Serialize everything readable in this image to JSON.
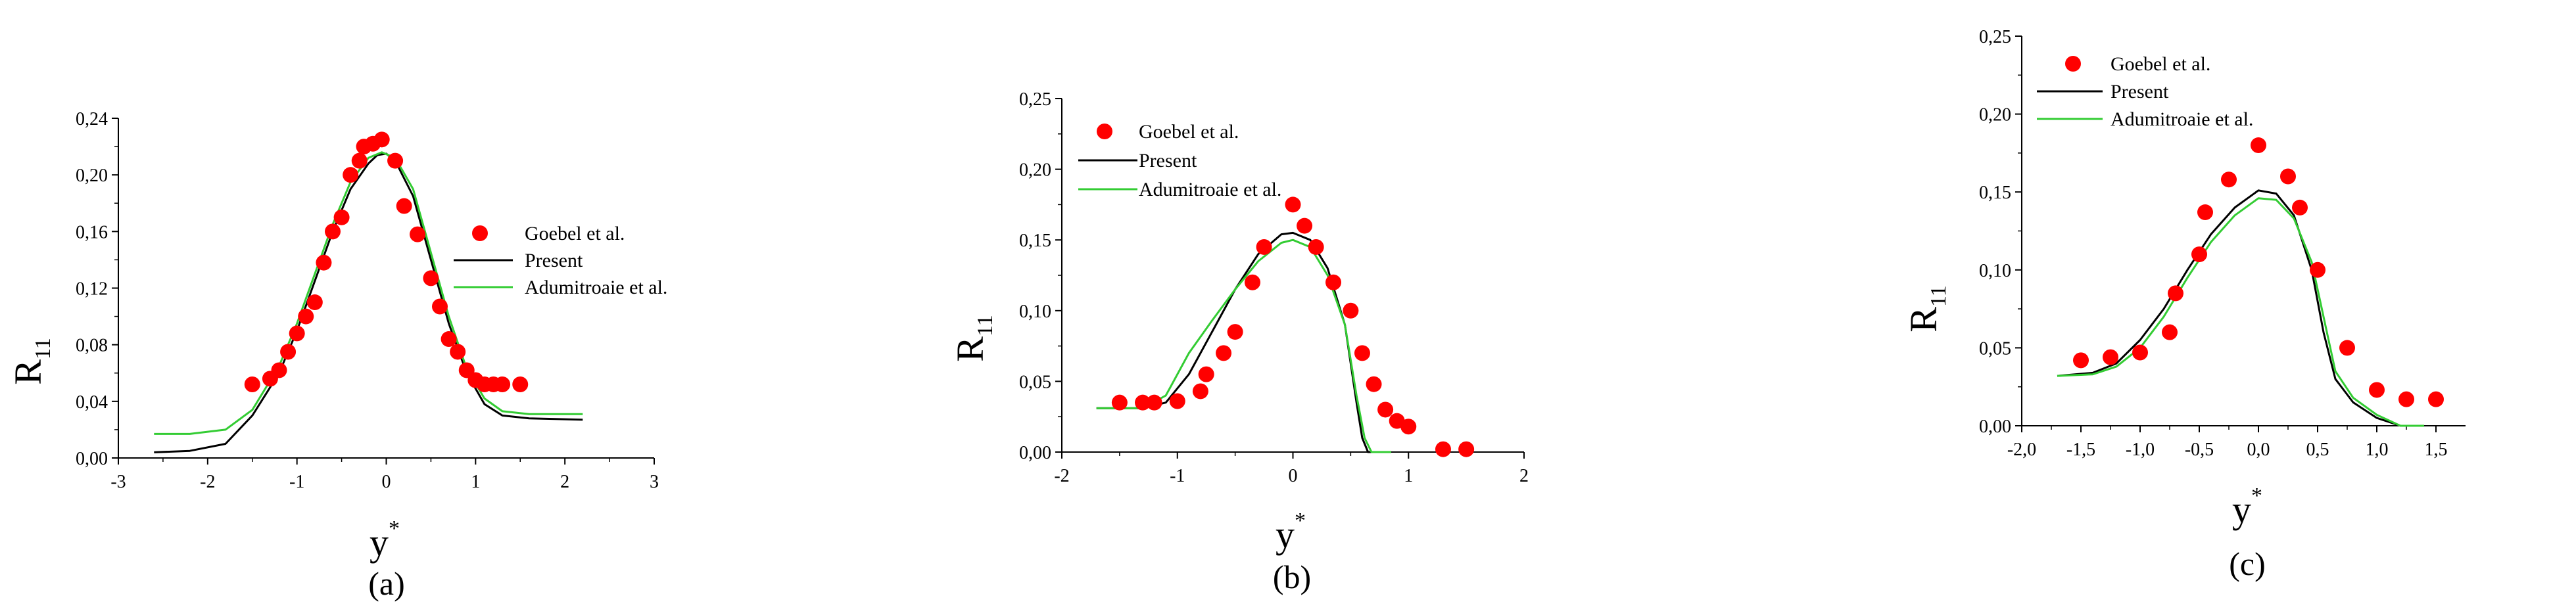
{
  "chart_data": [
    {
      "type": "line",
      "panel_label": "(a)",
      "xlabel": "y",
      "xlabel_superscript": "*",
      "ylabel": "R",
      "ylabel_subscript": "11",
      "xlim": [
        -3,
        3
      ],
      "ylim": [
        0,
        0.24
      ],
      "xticks": [
        -3,
        -2,
        -1,
        0,
        1,
        2,
        3
      ],
      "xtick_labels": [
        "-3",
        "-2",
        "-1",
        "0",
        "1",
        "2",
        "3"
      ],
      "yticks": [
        0,
        0.04,
        0.08,
        0.12,
        0.16,
        0.2,
        0.24
      ],
      "ytick_labels": [
        "0,00",
        "0,04",
        "0,08",
        "0,12",
        "0,16",
        "0,20",
        "0,24"
      ],
      "legend_position": "center-right",
      "series": [
        {
          "name": "Goebel et al.",
          "kind": "scatter",
          "color": "#ff0000",
          "points": [
            [
              -1.5,
              0.052
            ],
            [
              -1.3,
              0.056
            ],
            [
              -1.2,
              0.062
            ],
            [
              -1.1,
              0.075
            ],
            [
              -1.0,
              0.088
            ],
            [
              -0.9,
              0.1
            ],
            [
              -0.8,
              0.11
            ],
            [
              -0.7,
              0.138
            ],
            [
              -0.6,
              0.16
            ],
            [
              -0.5,
              0.17
            ],
            [
              -0.4,
              0.2
            ],
            [
              -0.3,
              0.21
            ],
            [
              -0.25,
              0.22
            ],
            [
              -0.15,
              0.222
            ],
            [
              -0.05,
              0.225
            ],
            [
              0.1,
              0.21
            ],
            [
              0.2,
              0.178
            ],
            [
              0.35,
              0.158
            ],
            [
              0.5,
              0.127
            ],
            [
              0.6,
              0.107
            ],
            [
              0.7,
              0.084
            ],
            [
              0.8,
              0.075
            ],
            [
              0.9,
              0.062
            ],
            [
              1.0,
              0.055
            ],
            [
              1.1,
              0.052
            ],
            [
              1.2,
              0.052
            ],
            [
              1.3,
              0.052
            ],
            [
              1.5,
              0.052
            ]
          ]
        },
        {
          "name": "Present",
          "kind": "line",
          "color": "#000000",
          "points": [
            [
              -2.6,
              0.004
            ],
            [
              -2.2,
              0.005
            ],
            [
              -1.8,
              0.01
            ],
            [
              -1.5,
              0.03
            ],
            [
              -1.2,
              0.06
            ],
            [
              -1.0,
              0.09
            ],
            [
              -0.8,
              0.125
            ],
            [
              -0.6,
              0.16
            ],
            [
              -0.4,
              0.19
            ],
            [
              -0.2,
              0.208
            ],
            [
              -0.1,
              0.214
            ],
            [
              0.0,
              0.215
            ],
            [
              0.1,
              0.21
            ],
            [
              0.3,
              0.185
            ],
            [
              0.5,
              0.14
            ],
            [
              0.7,
              0.095
            ],
            [
              0.9,
              0.06
            ],
            [
              1.1,
              0.038
            ],
            [
              1.3,
              0.03
            ],
            [
              1.6,
              0.028
            ],
            [
              2.2,
              0.027
            ]
          ]
        },
        {
          "name": "Adumitroaie et al.",
          "kind": "line",
          "color": "#33cc33",
          "points": [
            [
              -2.6,
              0.017
            ],
            [
              -2.2,
              0.017
            ],
            [
              -1.8,
              0.02
            ],
            [
              -1.5,
              0.034
            ],
            [
              -1.2,
              0.065
            ],
            [
              -1.0,
              0.095
            ],
            [
              -0.8,
              0.13
            ],
            [
              -0.6,
              0.165
            ],
            [
              -0.4,
              0.195
            ],
            [
              -0.2,
              0.212
            ],
            [
              -0.05,
              0.216
            ],
            [
              0.1,
              0.212
            ],
            [
              0.3,
              0.19
            ],
            [
              0.5,
              0.145
            ],
            [
              0.7,
              0.1
            ],
            [
              0.9,
              0.063
            ],
            [
              1.1,
              0.042
            ],
            [
              1.3,
              0.033
            ],
            [
              1.6,
              0.031
            ],
            [
              2.2,
              0.031
            ]
          ]
        }
      ]
    },
    {
      "type": "line",
      "panel_label": "(b)",
      "xlabel": "y",
      "xlabel_superscript": "*",
      "ylabel": "R",
      "ylabel_subscript": "11",
      "xlim": [
        -2,
        2
      ],
      "ylim": [
        0,
        0.25
      ],
      "xticks": [
        -2,
        -1,
        0,
        1,
        2
      ],
      "xtick_labels": [
        "-2",
        "-1",
        "0",
        "1",
        "2"
      ],
      "yticks": [
        0,
        0.05,
        0.1,
        0.15,
        0.2,
        0.25
      ],
      "ytick_labels": [
        "0,00",
        "0,05",
        "0,10",
        "0,15",
        "0,20",
        "0,25"
      ],
      "legend_position": "top-left",
      "series": [
        {
          "name": "Goebel et al.",
          "kind": "scatter",
          "color": "#ff0000",
          "points": [
            [
              -1.5,
              0.035
            ],
            [
              -1.3,
              0.035
            ],
            [
              -1.2,
              0.035
            ],
            [
              -1.0,
              0.036
            ],
            [
              -0.8,
              0.043
            ],
            [
              -0.75,
              0.055
            ],
            [
              -0.6,
              0.07
            ],
            [
              -0.5,
              0.085
            ],
            [
              -0.35,
              0.12
            ],
            [
              -0.25,
              0.145
            ],
            [
              0.0,
              0.175
            ],
            [
              0.1,
              0.16
            ],
            [
              0.2,
              0.145
            ],
            [
              0.35,
              0.12
            ],
            [
              0.5,
              0.1
            ],
            [
              0.6,
              0.07
            ],
            [
              0.7,
              0.048
            ],
            [
              0.8,
              0.03
            ],
            [
              0.9,
              0.022
            ],
            [
              1.0,
              0.018
            ],
            [
              1.3,
              0.002
            ],
            [
              1.5,
              0.002
            ]
          ]
        },
        {
          "name": "Present",
          "kind": "line",
          "color": "#000000",
          "points": [
            [
              -1.7,
              0.031
            ],
            [
              -1.3,
              0.031
            ],
            [
              -1.1,
              0.035
            ],
            [
              -0.9,
              0.055
            ],
            [
              -0.7,
              0.085
            ],
            [
              -0.5,
              0.115
            ],
            [
              -0.3,
              0.14
            ],
            [
              -0.1,
              0.154
            ],
            [
              0.0,
              0.155
            ],
            [
              0.15,
              0.15
            ],
            [
              0.3,
              0.13
            ],
            [
              0.45,
              0.09
            ],
            [
              0.55,
              0.035
            ],
            [
              0.6,
              0.01
            ],
            [
              0.65,
              0.0
            ],
            [
              0.8,
              0.0
            ]
          ]
        },
        {
          "name": "Adumitroaie et al.",
          "kind": "line",
          "color": "#33cc33",
          "points": [
            [
              -1.7,
              0.031
            ],
            [
              -1.3,
              0.031
            ],
            [
              -1.1,
              0.04
            ],
            [
              -0.9,
              0.07
            ],
            [
              -0.7,
              0.093
            ],
            [
              -0.5,
              0.115
            ],
            [
              -0.3,
              0.135
            ],
            [
              -0.1,
              0.148
            ],
            [
              0.0,
              0.15
            ],
            [
              0.15,
              0.145
            ],
            [
              0.3,
              0.125
            ],
            [
              0.45,
              0.09
            ],
            [
              0.55,
              0.04
            ],
            [
              0.62,
              0.01
            ],
            [
              0.68,
              0.0
            ],
            [
              0.85,
              0.0
            ]
          ]
        }
      ]
    },
    {
      "type": "line",
      "panel_label": "(c)",
      "xlabel": "y",
      "xlabel_superscript": "*",
      "ylabel": "R",
      "ylabel_subscript": "11",
      "xlim": [
        -2.0,
        1.75
      ],
      "ylim": [
        0,
        0.25
      ],
      "xticks": [
        -2.0,
        -1.5,
        -1.0,
        -0.5,
        0.0,
        0.5,
        1.0,
        1.5
      ],
      "xtick_labels": [
        "-2,0",
        "-1,5",
        "-1,0",
        "-0,5",
        "0,0",
        "0,5",
        "1,0",
        "1,5"
      ],
      "yticks": [
        0,
        0.05,
        0.1,
        0.15,
        0.2,
        0.25
      ],
      "ytick_labels": [
        "0,00",
        "0,05",
        "0,10",
        "0,15",
        "0,20",
        "0,25"
      ],
      "legend_position": "top-left",
      "series": [
        {
          "name": "Goebel et al.",
          "kind": "scatter",
          "color": "#ff0000",
          "points": [
            [
              -1.5,
              0.042
            ],
            [
              -1.25,
              0.044
            ],
            [
              -1.0,
              0.047
            ],
            [
              -0.75,
              0.06
            ],
            [
              -0.7,
              0.085
            ],
            [
              -0.5,
              0.11
            ],
            [
              -0.45,
              0.137
            ],
            [
              -0.25,
              0.158
            ],
            [
              0.0,
              0.18
            ],
            [
              0.25,
              0.16
            ],
            [
              0.35,
              0.14
            ],
            [
              0.5,
              0.1
            ],
            [
              0.75,
              0.05
            ],
            [
              1.0,
              0.023
            ],
            [
              1.25,
              0.017
            ],
            [
              1.5,
              0.017
            ]
          ]
        },
        {
          "name": "Present",
          "kind": "line",
          "color": "#000000",
          "points": [
            [
              -1.7,
              0.032
            ],
            [
              -1.4,
              0.034
            ],
            [
              -1.2,
              0.04
            ],
            [
              -1.0,
              0.055
            ],
            [
              -0.8,
              0.075
            ],
            [
              -0.6,
              0.1
            ],
            [
              -0.4,
              0.123
            ],
            [
              -0.2,
              0.14
            ],
            [
              0.0,
              0.151
            ],
            [
              0.15,
              0.149
            ],
            [
              0.3,
              0.135
            ],
            [
              0.45,
              0.1
            ],
            [
              0.55,
              0.06
            ],
            [
              0.65,
              0.03
            ],
            [
              0.8,
              0.015
            ],
            [
              1.0,
              0.005
            ],
            [
              1.2,
              0.0
            ],
            [
              1.4,
              0.0
            ]
          ]
        },
        {
          "name": "Adumitroaie et al.",
          "kind": "line",
          "color": "#33cc33",
          "points": [
            [
              -1.7,
              0.032
            ],
            [
              -1.4,
              0.033
            ],
            [
              -1.2,
              0.038
            ],
            [
              -1.0,
              0.05
            ],
            [
              -0.8,
              0.07
            ],
            [
              -0.6,
              0.095
            ],
            [
              -0.4,
              0.118
            ],
            [
              -0.2,
              0.135
            ],
            [
              0.0,
              0.146
            ],
            [
              0.15,
              0.145
            ],
            [
              0.3,
              0.133
            ],
            [
              0.45,
              0.105
            ],
            [
              0.55,
              0.07
            ],
            [
              0.65,
              0.035
            ],
            [
              0.8,
              0.018
            ],
            [
              1.0,
              0.007
            ],
            [
              1.2,
              0.0
            ],
            [
              1.4,
              0.0
            ]
          ]
        }
      ]
    }
  ]
}
